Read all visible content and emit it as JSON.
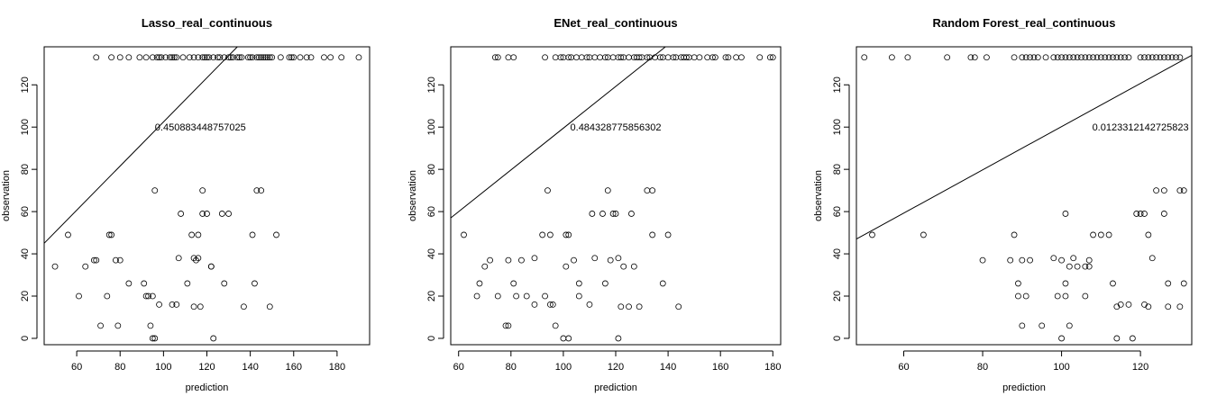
{
  "chart_data": [
    {
      "type": "scatter",
      "title": "Lasso_real_continuous",
      "xlabel": "prediction",
      "ylabel": "observation",
      "xlim": [
        45,
        195
      ],
      "ylim": [
        -3,
        138
      ],
      "xticks": [
        60,
        80,
        100,
        120,
        140,
        160,
        180
      ],
      "yticks": [
        0,
        20,
        40,
        60,
        80,
        100,
        120
      ],
      "annotation": {
        "text": "0.450883448757025",
        "x": 117,
        "y": 100
      },
      "abline": {
        "x1": 45,
        "y1": 45,
        "x2": 135,
        "y2": 139
      },
      "points": [
        [
          50,
          34
        ],
        [
          56,
          49
        ],
        [
          61,
          20
        ],
        [
          64,
          34
        ],
        [
          68,
          37
        ],
        [
          69,
          37
        ],
        [
          71,
          6
        ],
        [
          74,
          20
        ],
        [
          75,
          49
        ],
        [
          76,
          49
        ],
        [
          78,
          37
        ],
        [
          79,
          6
        ],
        [
          80,
          37
        ],
        [
          84,
          26
        ],
        [
          91,
          26
        ],
        [
          92,
          20
        ],
        [
          93,
          20
        ],
        [
          94,
          6
        ],
        [
          95,
          20
        ],
        [
          95,
          0
        ],
        [
          96,
          0
        ],
        [
          96,
          70
        ],
        [
          98,
          16
        ],
        [
          104,
          16
        ],
        [
          106,
          16
        ],
        [
          107,
          38
        ],
        [
          108,
          59
        ],
        [
          111,
          26
        ],
        [
          113,
          49
        ],
        [
          114,
          15
        ],
        [
          114,
          38
        ],
        [
          115,
          37
        ],
        [
          116,
          38
        ],
        [
          116,
          49
        ],
        [
          117,
          15
        ],
        [
          118,
          70
        ],
        [
          118,
          59
        ],
        [
          120,
          59
        ],
        [
          122,
          34
        ],
        [
          122,
          34
        ],
        [
          123,
          0
        ],
        [
          127,
          59
        ],
        [
          128,
          26
        ],
        [
          130,
          59
        ],
        [
          137,
          15
        ],
        [
          141,
          49
        ],
        [
          142,
          26
        ],
        [
          143,
          70
        ],
        [
          145,
          70
        ],
        [
          149,
          15
        ],
        [
          152,
          49
        ],
        [
          69,
          133
        ],
        [
          76,
          133
        ],
        [
          80,
          133
        ],
        [
          84,
          133
        ],
        [
          89,
          133
        ],
        [
          92,
          133
        ],
        [
          95,
          133
        ],
        [
          97,
          133
        ],
        [
          98,
          133
        ],
        [
          99,
          133
        ],
        [
          101,
          133
        ],
        [
          103,
          133
        ],
        [
          104,
          133
        ],
        [
          105,
          133
        ],
        [
          106,
          133
        ],
        [
          109,
          133
        ],
        [
          112,
          133
        ],
        [
          114,
          133
        ],
        [
          116,
          133
        ],
        [
          118,
          133
        ],
        [
          119,
          133
        ],
        [
          120,
          133
        ],
        [
          121,
          133
        ],
        [
          123,
          133
        ],
        [
          125,
          133
        ],
        [
          126,
          133
        ],
        [
          128,
          133
        ],
        [
          130,
          133
        ],
        [
          131,
          133
        ],
        [
          132,
          133
        ],
        [
          134,
          133
        ],
        [
          135,
          133
        ],
        [
          136,
          133
        ],
        [
          139,
          133
        ],
        [
          140,
          133
        ],
        [
          141,
          133
        ],
        [
          143,
          133
        ],
        [
          144,
          133
        ],
        [
          145,
          133
        ],
        [
          146,
          133
        ],
        [
          147,
          133
        ],
        [
          148,
          133
        ],
        [
          149,
          133
        ],
        [
          150,
          133
        ],
        [
          154,
          133
        ],
        [
          158,
          133
        ],
        [
          159,
          133
        ],
        [
          160,
          133
        ],
        [
          163,
          133
        ],
        [
          166,
          133
        ],
        [
          168,
          133
        ],
        [
          174,
          133
        ],
        [
          177,
          133
        ],
        [
          182,
          133
        ],
        [
          190,
          133
        ]
      ]
    },
    {
      "type": "scatter",
      "title": "ENet_real_continuous",
      "xlabel": "prediction",
      "ylabel": "observation",
      "xlim": [
        57,
        183
      ],
      "ylim": [
        -3,
        138
      ],
      "xticks": [
        60,
        80,
        100,
        120,
        140,
        160,
        180
      ],
      "yticks": [
        0,
        20,
        40,
        60,
        80,
        100,
        120
      ],
      "annotation": {
        "text": "0.484328775856302",
        "x": 120,
        "y": 100
      },
      "abline": {
        "x1": 57,
        "y1": 57,
        "x2": 140,
        "y2": 139
      },
      "points": [
        [
          62,
          49
        ],
        [
          67,
          20
        ],
        [
          68,
          26
        ],
        [
          70,
          34
        ],
        [
          72,
          37
        ],
        [
          75,
          20
        ],
        [
          78,
          6
        ],
        [
          79,
          6
        ],
        [
          79,
          37
        ],
        [
          81,
          26
        ],
        [
          82,
          20
        ],
        [
          84,
          37
        ],
        [
          86,
          20
        ],
        [
          89,
          16
        ],
        [
          89,
          38
        ],
        [
          92,
          49
        ],
        [
          93,
          20
        ],
        [
          94,
          70
        ],
        [
          95,
          16
        ],
        [
          95,
          49
        ],
        [
          96,
          16
        ],
        [
          97,
          6
        ],
        [
          100,
          0
        ],
        [
          101,
          34
        ],
        [
          101,
          49
        ],
        [
          102,
          0
        ],
        [
          102,
          49
        ],
        [
          104,
          37
        ],
        [
          106,
          20
        ],
        [
          106,
          26
        ],
        [
          110,
          16
        ],
        [
          111,
          59
        ],
        [
          112,
          38
        ],
        [
          115,
          59
        ],
        [
          116,
          26
        ],
        [
          117,
          70
        ],
        [
          118,
          37
        ],
        [
          119,
          59
        ],
        [
          120,
          59
        ],
        [
          121,
          0
        ],
        [
          121,
          38
        ],
        [
          122,
          15
        ],
        [
          123,
          34
        ],
        [
          125,
          15
        ],
        [
          126,
          59
        ],
        [
          127,
          34
        ],
        [
          129,
          15
        ],
        [
          132,
          70
        ],
        [
          134,
          70
        ],
        [
          134,
          49
        ],
        [
          138,
          26
        ],
        [
          140,
          49
        ],
        [
          144,
          15
        ],
        [
          74,
          133
        ],
        [
          75,
          133
        ],
        [
          79,
          133
        ],
        [
          81,
          133
        ],
        [
          93,
          133
        ],
        [
          97,
          133
        ],
        [
          99,
          133
        ],
        [
          100,
          133
        ],
        [
          102,
          133
        ],
        [
          103,
          133
        ],
        [
          105,
          133
        ],
        [
          107,
          133
        ],
        [
          109,
          133
        ],
        [
          110,
          133
        ],
        [
          112,
          133
        ],
        [
          114,
          133
        ],
        [
          116,
          133
        ],
        [
          117,
          133
        ],
        [
          119,
          133
        ],
        [
          121,
          133
        ],
        [
          122,
          133
        ],
        [
          123,
          133
        ],
        [
          125,
          133
        ],
        [
          127,
          133
        ],
        [
          128,
          133
        ],
        [
          129,
          133
        ],
        [
          130,
          133
        ],
        [
          132,
          133
        ],
        [
          133,
          133
        ],
        [
          135,
          133
        ],
        [
          137,
          133
        ],
        [
          138,
          133
        ],
        [
          140,
          133
        ],
        [
          142,
          133
        ],
        [
          143,
          133
        ],
        [
          145,
          133
        ],
        [
          146,
          133
        ],
        [
          147,
          133
        ],
        [
          148,
          133
        ],
        [
          150,
          133
        ],
        [
          152,
          133
        ],
        [
          155,
          133
        ],
        [
          157,
          133
        ],
        [
          158,
          133
        ],
        [
          162,
          133
        ],
        [
          163,
          133
        ],
        [
          166,
          133
        ],
        [
          168,
          133
        ],
        [
          175,
          133
        ],
        [
          179,
          133
        ],
        [
          180,
          133
        ]
      ]
    },
    {
      "type": "scatter",
      "title": "Random Forest_real_continuous",
      "xlabel": "prediction",
      "ylabel": "observation",
      "xlim": [
        48,
        133
      ],
      "ylim": [
        -3,
        138
      ],
      "xticks": [
        60,
        80,
        100,
        120
      ],
      "yticks": [
        0,
        20,
        40,
        60,
        80,
        100,
        120
      ],
      "annotation": {
        "text": "0.0123312142725823",
        "x": 120,
        "y": 100
      },
      "abline": {
        "x1": 48,
        "y1": 47,
        "x2": 133,
        "y2": 134
      },
      "points": [
        [
          52,
          49
        ],
        [
          65,
          49
        ],
        [
          80,
          37
        ],
        [
          87,
          37
        ],
        [
          88,
          49
        ],
        [
          89,
          20
        ],
        [
          89,
          26
        ],
        [
          90,
          6
        ],
        [
          90,
          37
        ],
        [
          91,
          20
        ],
        [
          92,
          37
        ],
        [
          95,
          6
        ],
        [
          98,
          38
        ],
        [
          99,
          20
        ],
        [
          100,
          37
        ],
        [
          100,
          0
        ],
        [
          101,
          20
        ],
        [
          101,
          26
        ],
        [
          101,
          59
        ],
        [
          102,
          34
        ],
        [
          102,
          6
        ],
        [
          103,
          38
        ],
        [
          104,
          34
        ],
        [
          106,
          34
        ],
        [
          106,
          20
        ],
        [
          107,
          34
        ],
        [
          107,
          37
        ],
        [
          108,
          49
        ],
        [
          110,
          49
        ],
        [
          112,
          49
        ],
        [
          113,
          26
        ],
        [
          114,
          15
        ],
        [
          115,
          16
        ],
        [
          117,
          16
        ],
        [
          118,
          0
        ],
        [
          119,
          59
        ],
        [
          120,
          59
        ],
        [
          121,
          16
        ],
        [
          121,
          59
        ],
        [
          122,
          15
        ],
        [
          122,
          49
        ],
        [
          123,
          38
        ],
        [
          124,
          70
        ],
        [
          126,
          59
        ],
        [
          126,
          70
        ],
        [
          127,
          15
        ],
        [
          127,
          26
        ],
        [
          130,
          15
        ],
        [
          130,
          70
        ],
        [
          131,
          70
        ],
        [
          131,
          26
        ],
        [
          114,
          0
        ],
        [
          50,
          133
        ],
        [
          57,
          133
        ],
        [
          61,
          133
        ],
        [
          71,
          133
        ],
        [
          77,
          133
        ],
        [
          78,
          133
        ],
        [
          81,
          133
        ],
        [
          88,
          133
        ],
        [
          90,
          133
        ],
        [
          91,
          133
        ],
        [
          92,
          133
        ],
        [
          93,
          133
        ],
        [
          94,
          133
        ],
        [
          96,
          133
        ],
        [
          98,
          133
        ],
        [
          99,
          133
        ],
        [
          100,
          133
        ],
        [
          101,
          133
        ],
        [
          102,
          133
        ],
        [
          103,
          133
        ],
        [
          104,
          133
        ],
        [
          105,
          133
        ],
        [
          106,
          133
        ],
        [
          107,
          133
        ],
        [
          108,
          133
        ],
        [
          109,
          133
        ],
        [
          110,
          133
        ],
        [
          111,
          133
        ],
        [
          112,
          133
        ],
        [
          113,
          133
        ],
        [
          114,
          133
        ],
        [
          115,
          133
        ],
        [
          116,
          133
        ],
        [
          117,
          133
        ],
        [
          120,
          133
        ],
        [
          121,
          133
        ],
        [
          122,
          133
        ],
        [
          123,
          133
        ],
        [
          124,
          133
        ],
        [
          125,
          133
        ],
        [
          126,
          133
        ],
        [
          127,
          133
        ],
        [
          128,
          133
        ],
        [
          129,
          133
        ],
        [
          130,
          133
        ]
      ]
    }
  ]
}
